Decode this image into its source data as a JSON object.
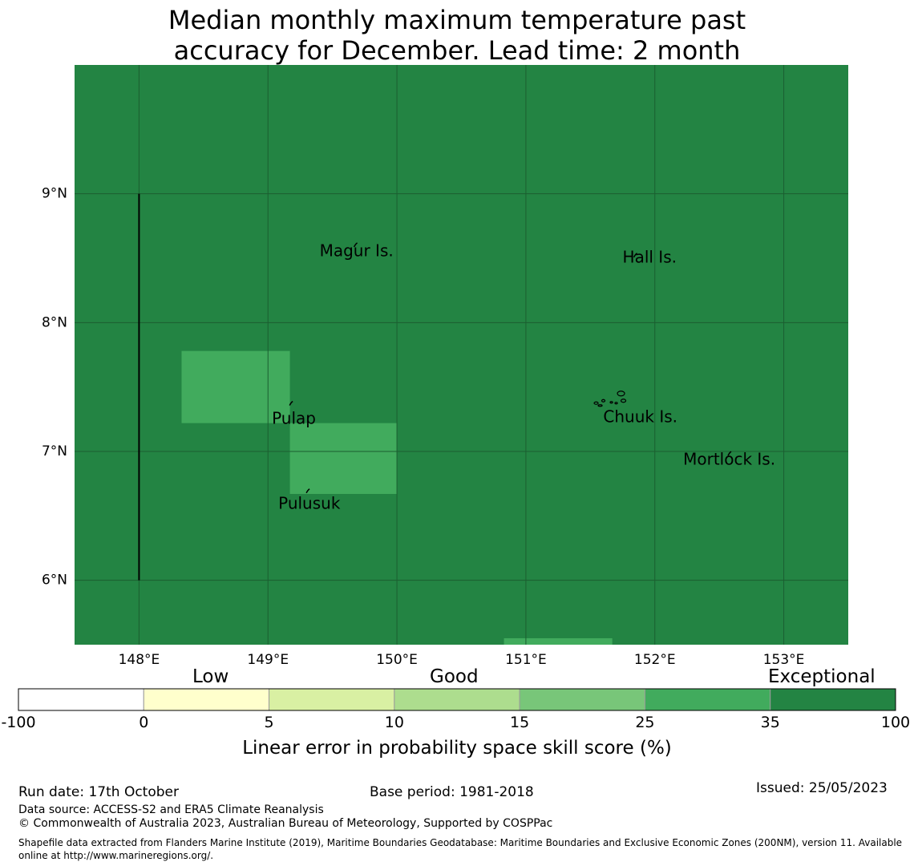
{
  "title": {
    "line1": "Median monthly maximum temperature past",
    "line2": "accuracy for December. Lead time: 2 month"
  },
  "map": {
    "lon_range": [
      147.5,
      153.5
    ],
    "lat_range": [
      5.5,
      10.0
    ],
    "background_color": "#238443",
    "lon_ticks": [
      148,
      149,
      150,
      151,
      152,
      153
    ],
    "lat_ticks": [
      6,
      7,
      8,
      9
    ],
    "lon_tick_labels": [
      "148°E",
      "149°E",
      "150°E",
      "151°E",
      "152°E",
      "153°E"
    ],
    "lat_tick_labels": [
      "6°N",
      "7°N",
      "8°N",
      "9°N"
    ],
    "cells": [
      {
        "lon0": 148.33,
        "lon1": 149.17,
        "lat0": 7.22,
        "lat1": 7.78,
        "color": "#41ab5d",
        "skill_class": "25-35"
      },
      {
        "lon0": 149.17,
        "lon1": 150.0,
        "lat0": 6.67,
        "lat1": 7.22,
        "color": "#41ab5d",
        "skill_class": "25-35"
      },
      {
        "lon0": 150.83,
        "lon1": 151.67,
        "lat0": 5.5,
        "lat1": 5.55,
        "color": "#41ab5d",
        "skill_class": "25-35"
      }
    ],
    "boundary_line": {
      "lon": 148.0,
      "lat0": 6.0,
      "lat1": 9.0
    },
    "places": [
      {
        "name": "Magur Is.",
        "lon": 149.4,
        "lat": 8.55,
        "mark_lon": 149.68,
        "mark_lat": 8.6
      },
      {
        "name": "Hall Is.",
        "lon": 151.75,
        "lat": 8.5,
        "mark_lon": 151.85,
        "mark_lat": 8.52
      },
      {
        "name": "Pulap",
        "lon": 149.03,
        "lat": 7.25,
        "mark_lon": 149.18,
        "mark_lat": 7.37
      },
      {
        "name": "Chuuk Is.",
        "lon": 151.6,
        "lat": 7.26,
        "mark_lon": 151.75,
        "mark_lat": 7.4
      },
      {
        "name": "Mortlock Is.",
        "lon": 152.22,
        "lat": 6.93,
        "mark_lon": 152.58,
        "mark_lat": 6.98
      },
      {
        "name": "Pulusuk",
        "lon": 149.08,
        "lat": 6.59,
        "mark_lon": 149.31,
        "mark_lat": 6.69
      }
    ]
  },
  "colorbar": {
    "categories": [
      "Low",
      "Good",
      "Exceptional"
    ],
    "bins": [
      {
        "from": "-100",
        "to": "0",
        "color": "#ffffff"
      },
      {
        "from": "0",
        "to": "5",
        "color": "#ffffcc"
      },
      {
        "from": "5",
        "to": "10",
        "color": "#d9f0a3"
      },
      {
        "from": "10",
        "to": "15",
        "color": "#addd8e"
      },
      {
        "from": "15",
        "to": "25",
        "color": "#78c679"
      },
      {
        "from": "25",
        "to": "35",
        "color": "#41ab5d"
      },
      {
        "from": "35",
        "to": "100",
        "color": "#238443"
      }
    ],
    "tick_labels": [
      "-100",
      "0",
      "5",
      "10",
      "15",
      "25",
      "35",
      "100"
    ],
    "label": "Linear error in probability space skill score (%)"
  },
  "footer": {
    "run_date": "Run date: 17th October",
    "base_period": "Base period: 1981-2018",
    "issued": "Issued: 25/05/2023",
    "data_source": "Data source: ACCESS-S2 and ERA5 Climate Reanalysis",
    "copyright": "© Commonwealth of Australia 2023, Australian Bureau of Meteorology, Supported by COSPPac",
    "shapefile": "Shapefile data extracted from Flanders Marine Institute (2019), Maritime Boundaries Geodatabase: Maritime Boundaries and Exclusive Economic Zones (200NM), version 11. Available online at http://www.marineregions.org/."
  }
}
